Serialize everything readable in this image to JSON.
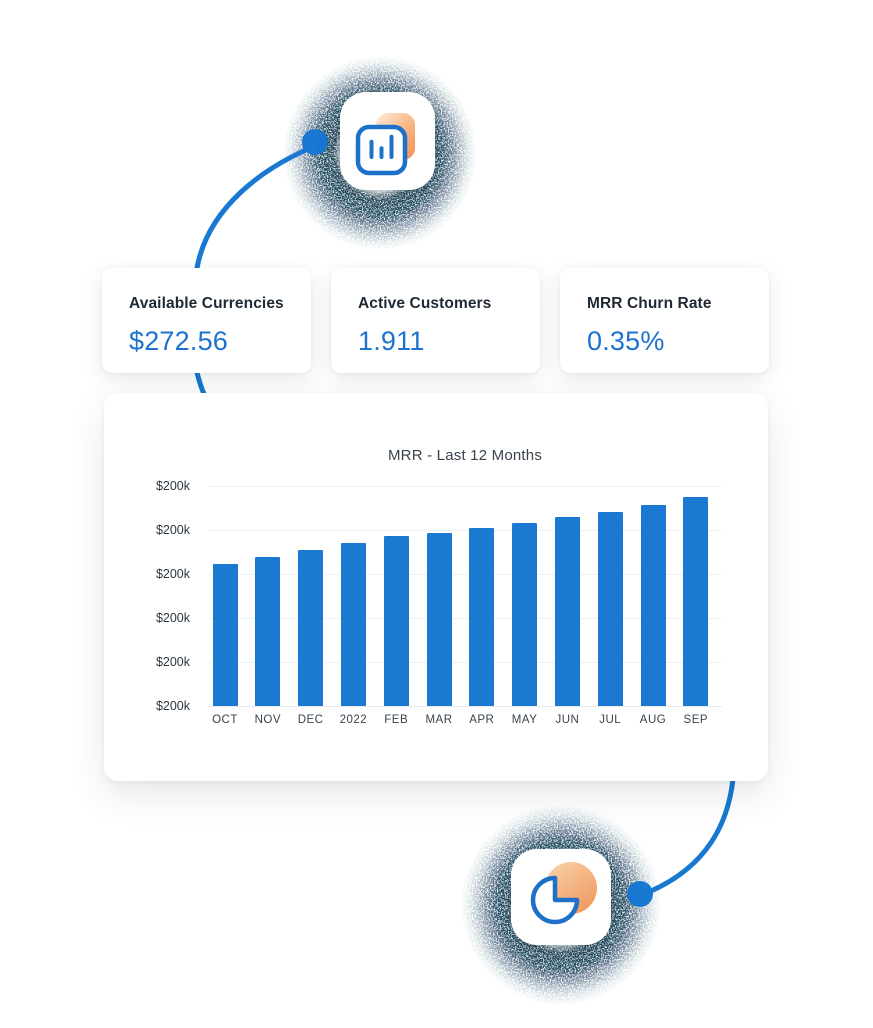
{
  "colors": {
    "accent_blue": "#1878d2",
    "bar_blue": "#1b79d2",
    "value_blue": "#1c72cf",
    "label_dark": "#1f2933",
    "title_gray": "#39434e",
    "gridline": "#edf0f4",
    "orange_light": "#fdeedd",
    "orange_deep": "#f28c4e",
    "ring_navy": "#15334c",
    "ring_teal": "#2b5f66"
  },
  "stat_cards": [
    {
      "label": "Available Currencies",
      "value": "$272.56"
    },
    {
      "label": "Active Customers",
      "value": "1.911"
    },
    {
      "label": "MRR Churn Rate",
      "value": "0.35%"
    }
  ],
  "chart_data": {
    "type": "bar",
    "title": "MRR - Last 12 Months",
    "xlabel": "",
    "ylabel": "",
    "categories": [
      "OCT",
      "NOV",
      "DEC",
      "2022",
      "FEB",
      "MAR",
      "APR",
      "MAY",
      "JUN",
      "JUL",
      "AUG",
      "SEP"
    ],
    "values_pct_of_axis": [
      64.5,
      67.7,
      70.9,
      74.1,
      77.3,
      78.6,
      80.9,
      83.2,
      85.9,
      88.2,
      91.4,
      95.0
    ],
    "y_tick_labels": [
      "$200k",
      "$200k",
      "$200k",
      "$200k",
      "$200k",
      "$200k"
    ],
    "ylim_pct": [
      0,
      100
    ],
    "grid": true,
    "legend": "none",
    "bar_color": "#1b79d2"
  },
  "icons": {
    "top": "bar-chart-icon",
    "bottom": "pie-chart-icon"
  }
}
